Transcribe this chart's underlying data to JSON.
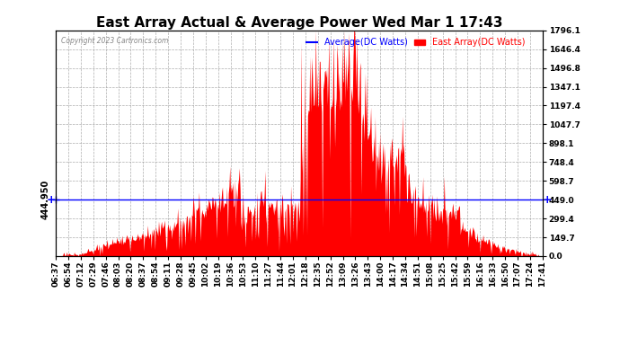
{
  "title": "East Array Actual & Average Power Wed Mar 1 17:43",
  "copyright": "Copyright 2023 Cartronics.com",
  "legend_avg": "Average(DC Watts)",
  "legend_east": "East Array(DC Watts)",
  "avg_color": "#0000ff",
  "east_color": "#ff0000",
  "left_label": "444.950",
  "right_yticks": [
    0.0,
    149.7,
    299.4,
    449.0,
    598.7,
    748.4,
    898.1,
    1047.7,
    1197.4,
    1347.1,
    1496.8,
    1646.4,
    1796.1
  ],
  "ymin": 0.0,
  "ymax": 1796.1,
  "avg_line_y": 449.0,
  "background": "#ffffff",
  "grid_color": "#999999",
  "title_fontsize": 11,
  "tick_fontsize": 6.5,
  "ylabel_fontsize": 7,
  "xtick_labels": [
    "06:37",
    "06:54",
    "07:12",
    "07:29",
    "07:46",
    "08:03",
    "08:20",
    "08:37",
    "08:54",
    "09:11",
    "09:28",
    "09:45",
    "10:02",
    "10:19",
    "10:36",
    "10:53",
    "11:10",
    "11:27",
    "11:44",
    "12:01",
    "12:18",
    "12:35",
    "12:52",
    "13:09",
    "13:26",
    "13:43",
    "14:00",
    "14:17",
    "14:34",
    "14:51",
    "15:08",
    "15:25",
    "15:42",
    "15:59",
    "16:16",
    "16:33",
    "16:50",
    "17:07",
    "17:24",
    "17:41"
  ]
}
